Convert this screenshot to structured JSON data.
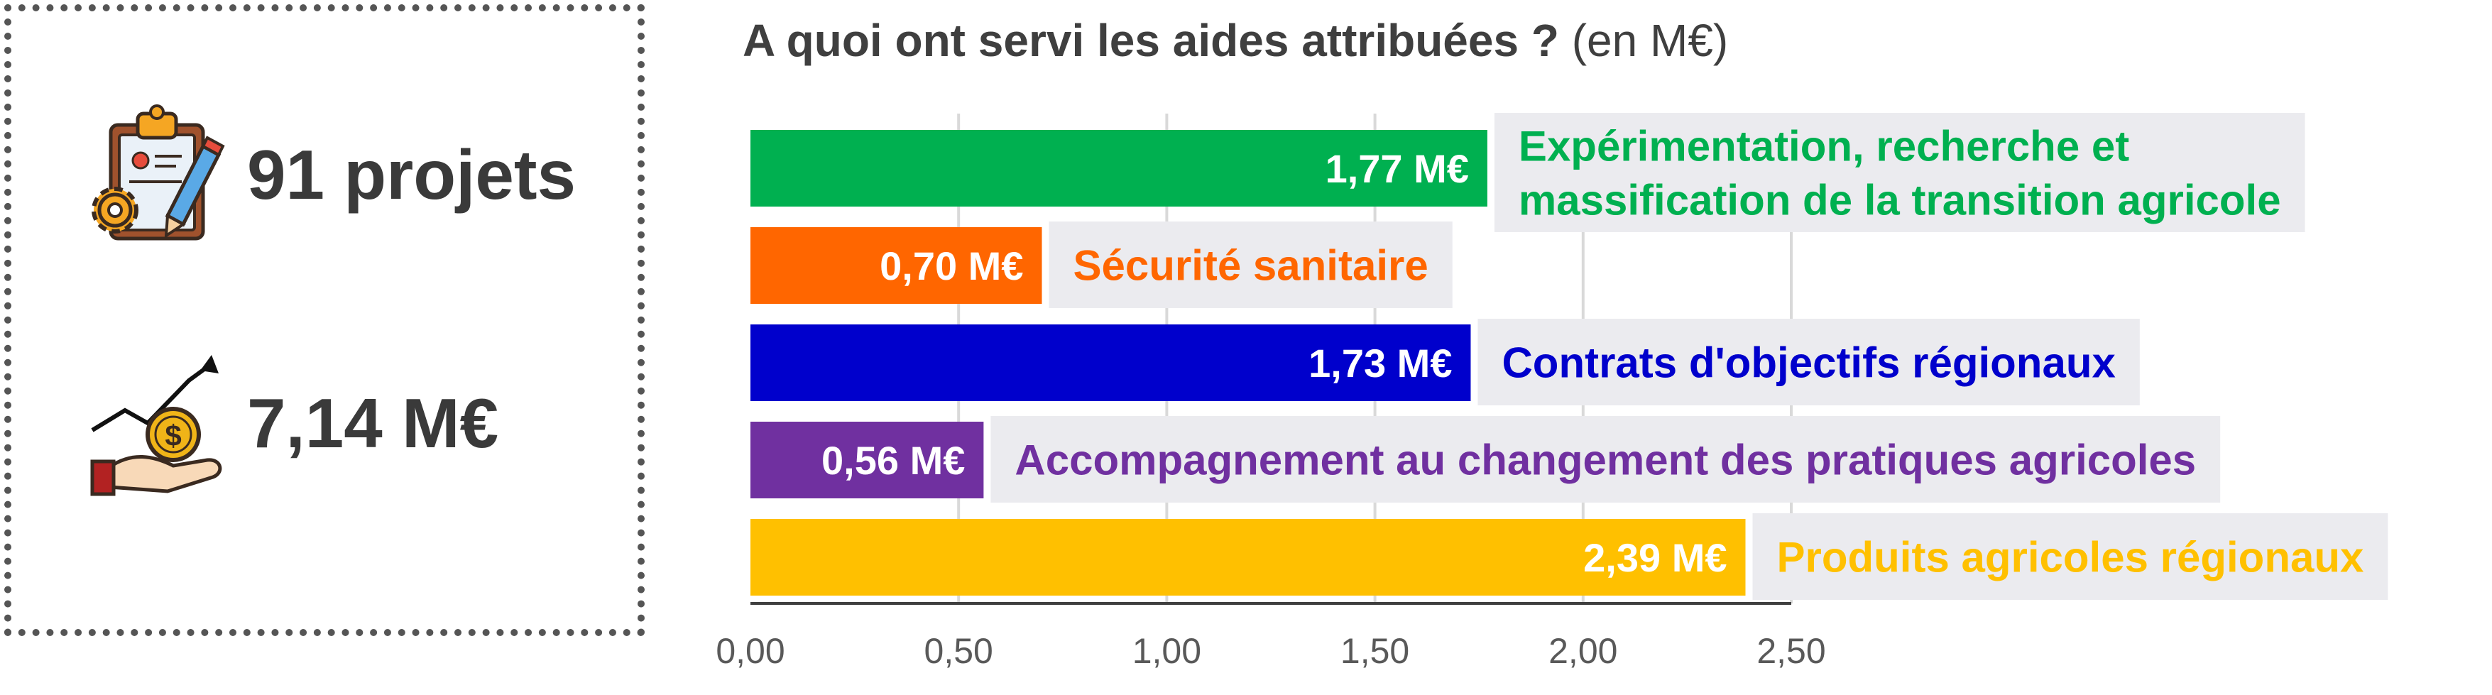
{
  "kpis": {
    "projects": {
      "value": "91 projets",
      "icon": "clipboard-pencil-gear-icon"
    },
    "amount": {
      "value": "7,14 M€",
      "icon": "hand-coin-growth-icon"
    }
  },
  "chart_data": {
    "type": "bar",
    "orientation": "horizontal",
    "title": "A quoi ont servi les aides attribuées ?",
    "title_unit": "(en M€)",
    "xlim": [
      0,
      2.5
    ],
    "x_ticks": [
      0,
      0.5,
      1,
      1.5,
      2,
      2.5
    ],
    "x_tick_labels": [
      "0,00",
      "0,50",
      "1,00",
      "1,50",
      "2,00",
      "2,50"
    ],
    "grid": "vertical",
    "categories": [
      "Expérimentation, recherche et massification de la transition agricole",
      "Sécurité sanitaire",
      "Contrats d'objectifs régionaux",
      "Accompagnement au changement des pratiques agricoles",
      "Produits agricoles régionaux"
    ],
    "category_lines": [
      [
        "Expérimentation, recherche et",
        "massification de la transition agricole"
      ],
      [
        "Sécurité sanitaire"
      ],
      [
        "Contrats d'objectifs régionaux"
      ],
      [
        "Accompagnement au changement des pratiques agricoles"
      ],
      [
        "Produits agricoles régionaux"
      ]
    ],
    "values": [
      1.77,
      0.7,
      1.73,
      0.56,
      2.39
    ],
    "value_labels": [
      "1,77 M€",
      "0,70 M€",
      "1,73 M€",
      "0,56 M€",
      "2,39 M€"
    ],
    "colors": [
      "#00b050",
      "#ff6600",
      "#0000cc",
      "#7030a0",
      "#ffc000"
    ],
    "label_background": "#ebebef",
    "grid_color": "#d9d9d9",
    "axis_color": "#3f3f3f",
    "tick_label_color": "#595959"
  }
}
